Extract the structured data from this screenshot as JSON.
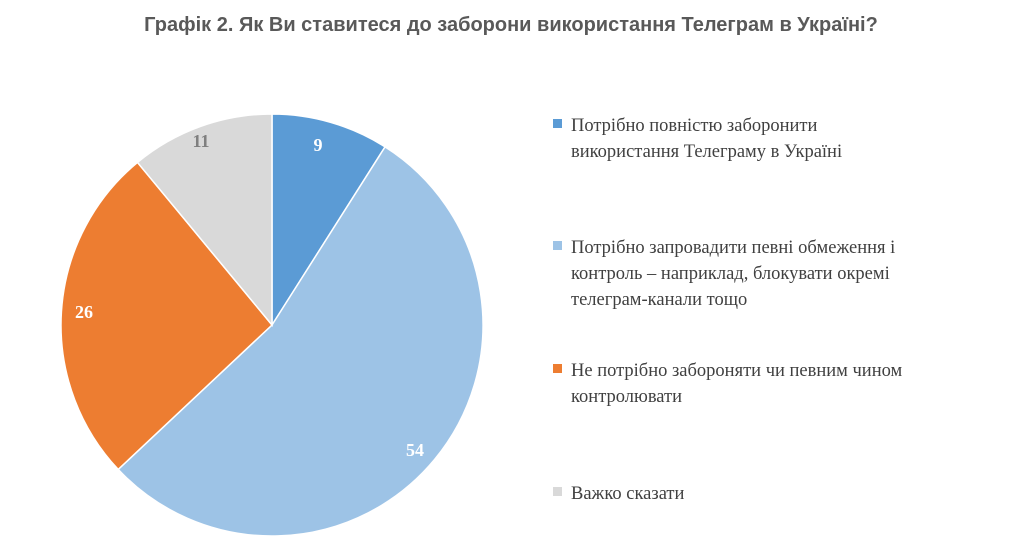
{
  "chart_data": {
    "type": "pie",
    "title": "Графік 2. Як Ви ставитеся до заборони використання Телеграм в Україні?",
    "slices": [
      {
        "label": "Потрібно повністю заборонити використання Телеграму в Україні",
        "value": 9,
        "color": "#5B9BD5",
        "text_color": "#FFFFFF"
      },
      {
        "label": "Потрібно запровадити певні обмеження і контроль – наприклад, блокувати окремі телеграм-канали тощо",
        "value": 54,
        "color": "#9DC3E6",
        "text_color": "#FFFFFF"
      },
      {
        "label": "Не потрібно забороняти чи певним чином контролювати",
        "value": 26,
        "color": "#ED7D31",
        "text_color": "#FFFFFF"
      },
      {
        "label": "Важко сказати",
        "value": 11,
        "color": "#D9D9D9",
        "text_color": "#7F7F7F"
      }
    ],
    "legend_position": "right",
    "start_angle": "12 o'clock",
    "direction": "clockwise"
  },
  "legend": {
    "items": [
      {
        "text": "Потрібно повністю заборонити\nвикористання Телеграму в Україні"
      },
      {
        "text": "Потрібно запровадити певні обмеження і\nконтроль – наприклад, блокувати окремі\nтелеграм-канали тощо"
      },
      {
        "text": "Не потрібно забороняти чи певним чином\nконтролювати"
      },
      {
        "text": "Важко сказати"
      }
    ]
  }
}
